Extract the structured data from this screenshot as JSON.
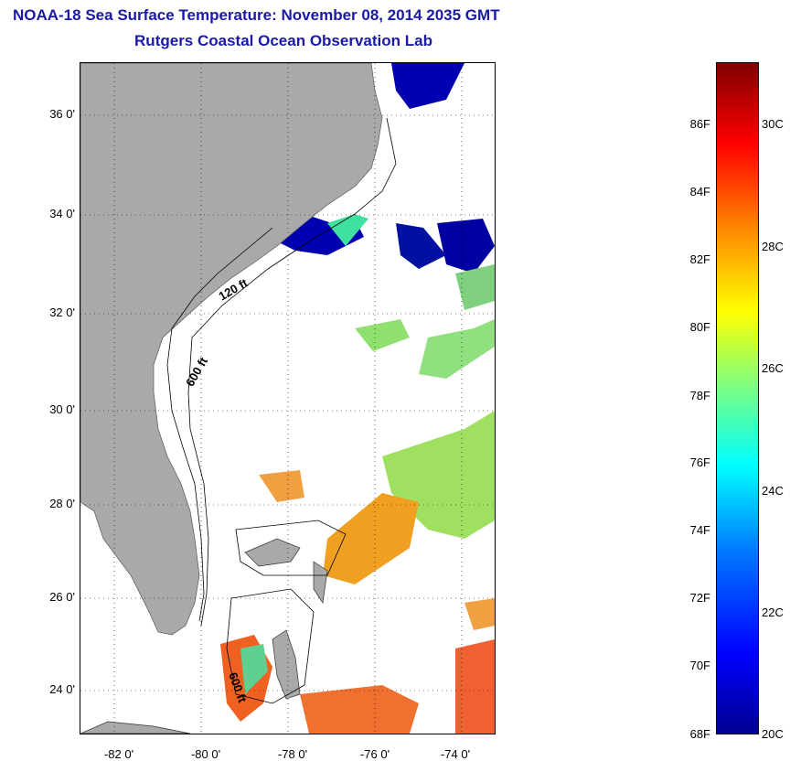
{
  "title_line1": "NOAA-18 Sea Surface Temperature:  November 08, 2014 2035 GMT",
  "title_line2": "Rutgers Coastal Ocean Observation Lab",
  "y_ticks": [
    "36 0'",
    "34 0'",
    "32 0'",
    "30 0'",
    "28 0'",
    "26 0'",
    "24 0'"
  ],
  "x_ticks": [
    "-82 0'",
    "-80 0'",
    "-78 0'",
    "-76 0'",
    "-74 0'"
  ],
  "colorbar_f": [
    "86F",
    "84F",
    "82F",
    "80F",
    "78F",
    "76F",
    "74F",
    "72F",
    "70F",
    "68F"
  ],
  "colorbar_c": [
    "30C",
    "28C",
    "26C",
    "24C",
    "22C",
    "20C"
  ],
  "contours": [
    "120 ft",
    "600 ft",
    "600 ft"
  ],
  "colors": {
    "land": "#a9a9a9",
    "title": "#1a1aa6"
  }
}
